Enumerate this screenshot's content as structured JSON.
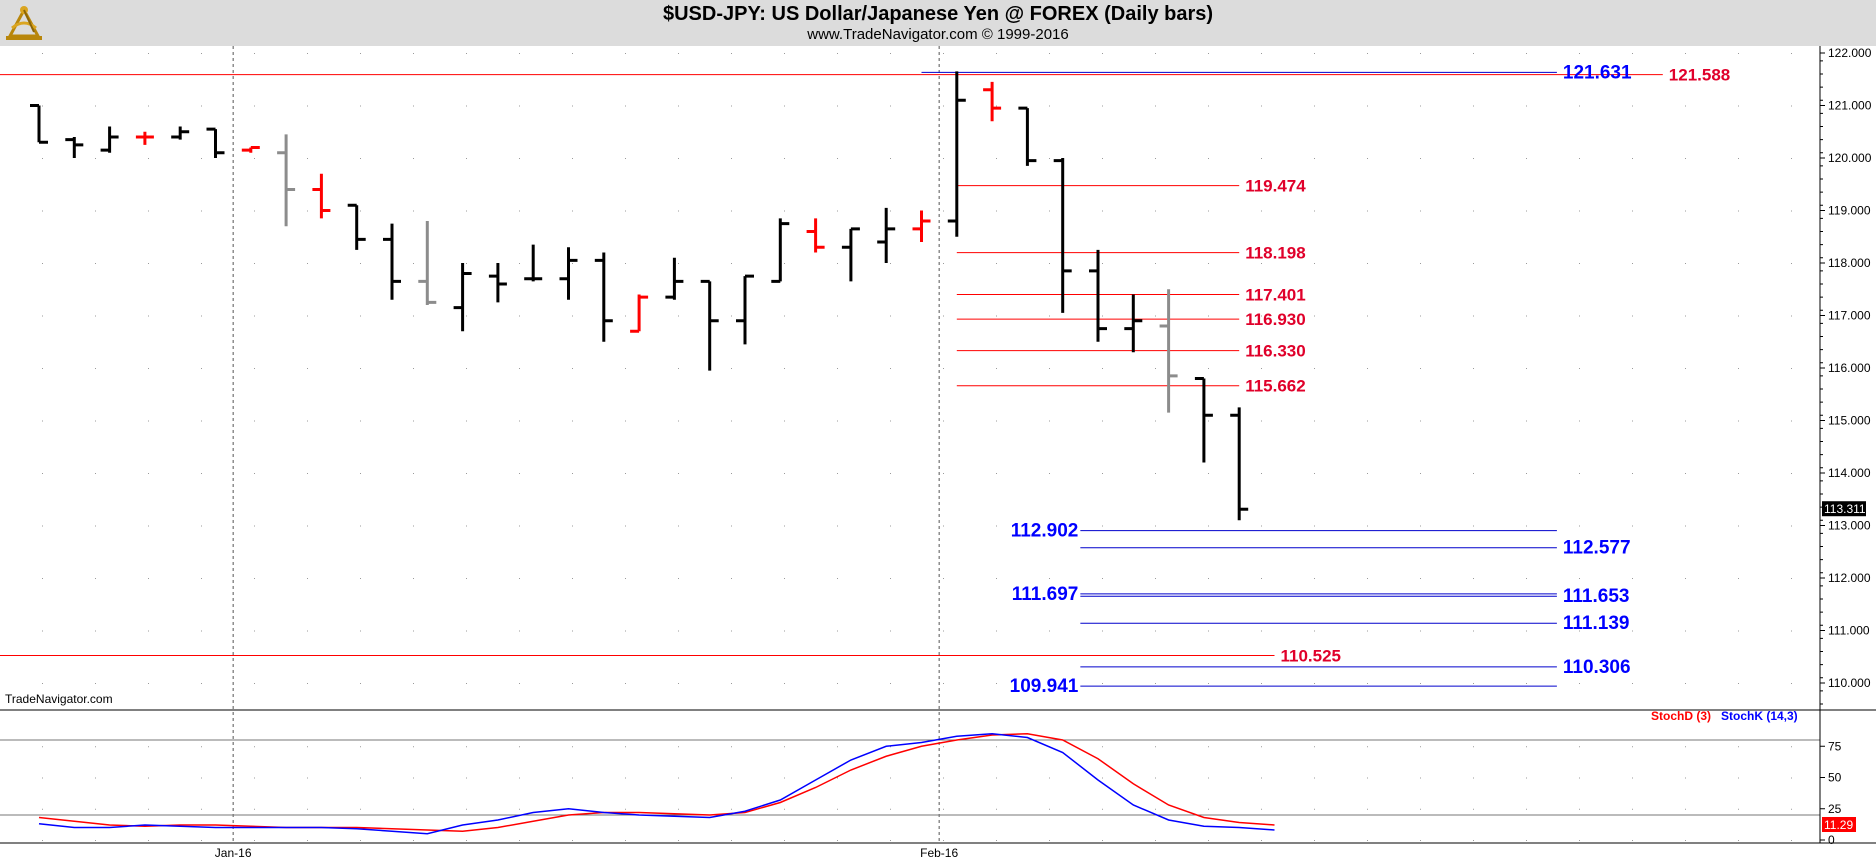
{
  "header": {
    "title": "$USD-JPY:  US Dollar/Japanese Yen @ FOREX  (Daily bars)",
    "subtitle": "www.TradeNavigator.com © 1999-2016"
  },
  "watermark": "TradeNavigator.com",
  "colors": {
    "bar_black": "#000000",
    "bar_red": "#ff0000",
    "bar_gray": "#8c8c8c",
    "level_red": "#ff0000",
    "level_red_text": "#e0002a",
    "level_blue": "#0000cc",
    "level_blue_text": "#0000ff",
    "grid": "#9a9a9a",
    "axis_line": "#000000",
    "price_tag_bg": "#000000",
    "stoch_tag_bg": "#ff0000"
  },
  "chart_data": [
    {
      "type": "bar",
      "subtype": "ohlc",
      "symbol": "$USD-JPY",
      "ylim": [
        109.6,
        122.0
      ],
      "yticks": [
        "122.000",
        "121.000",
        "120.000",
        "119.000",
        "118.000",
        "117.000",
        "116.000",
        "115.000",
        "114.000",
        "113.000",
        "112.000",
        "111.000",
        "110.000"
      ],
      "xtick_labels": [
        {
          "label": "Jan-16",
          "bar_index": 6
        },
        {
          "label": "Feb-16",
          "bar_index": 26
        }
      ],
      "last_price_label": "113.311",
      "bars": [
        {
          "o": 121.0,
          "h": 121.0,
          "l": 120.3,
          "c": 120.3,
          "color": "black"
        },
        {
          "o": 120.35,
          "h": 120.4,
          "l": 120.0,
          "c": 120.25,
          "color": "black"
        },
        {
          "o": 120.15,
          "h": 120.6,
          "l": 120.1,
          "c": 120.4,
          "color": "black"
        },
        {
          "o": 120.4,
          "h": 120.5,
          "l": 120.25,
          "c": 120.4,
          "color": "red"
        },
        {
          "o": 120.4,
          "h": 120.6,
          "l": 120.35,
          "c": 120.5,
          "color": "black"
        },
        {
          "o": 120.55,
          "h": 120.55,
          "l": 120.0,
          "c": 120.1,
          "color": "black"
        },
        {
          "o": 120.15,
          "h": 120.2,
          "l": 120.1,
          "c": 120.2,
          "color": "red"
        },
        {
          "o": 120.1,
          "h": 120.45,
          "l": 118.7,
          "c": 119.4,
          "color": "gray"
        },
        {
          "o": 119.4,
          "h": 119.7,
          "l": 118.85,
          "c": 119.0,
          "color": "red"
        },
        {
          "o": 119.1,
          "h": 119.1,
          "l": 118.25,
          "c": 118.45,
          "color": "black"
        },
        {
          "o": 118.45,
          "h": 118.75,
          "l": 117.3,
          "c": 117.65,
          "color": "black"
        },
        {
          "o": 117.65,
          "h": 118.8,
          "l": 117.2,
          "c": 117.25,
          "color": "gray"
        },
        {
          "o": 117.15,
          "h": 118.0,
          "l": 116.7,
          "c": 117.8,
          "color": "black"
        },
        {
          "o": 117.75,
          "h": 118.0,
          "l": 117.25,
          "c": 117.6,
          "color": "black"
        },
        {
          "o": 117.7,
          "h": 118.35,
          "l": 117.65,
          "c": 117.7,
          "color": "black"
        },
        {
          "o": 117.7,
          "h": 118.3,
          "l": 117.3,
          "c": 118.05,
          "color": "black"
        },
        {
          "o": 118.05,
          "h": 118.2,
          "l": 116.5,
          "c": 116.9,
          "color": "black"
        },
        {
          "o": 116.7,
          "h": 117.4,
          "l": 116.7,
          "c": 117.35,
          "color": "red"
        },
        {
          "o": 117.35,
          "h": 118.1,
          "l": 117.3,
          "c": 117.65,
          "color": "black"
        },
        {
          "o": 117.65,
          "h": 117.65,
          "l": 115.95,
          "c": 116.9,
          "color": "black"
        },
        {
          "o": 116.9,
          "h": 117.75,
          "l": 116.45,
          "c": 117.75,
          "color": "black"
        },
        {
          "o": 117.65,
          "h": 118.85,
          "l": 117.65,
          "c": 118.75,
          "color": "black"
        },
        {
          "o": 118.6,
          "h": 118.85,
          "l": 118.2,
          "c": 118.3,
          "color": "red"
        },
        {
          "o": 118.3,
          "h": 118.65,
          "l": 117.65,
          "c": 118.65,
          "color": "black"
        },
        {
          "o": 118.4,
          "h": 119.05,
          "l": 118.0,
          "c": 118.65,
          "color": "black"
        },
        {
          "o": 118.65,
          "h": 119.0,
          "l": 118.4,
          "c": 118.8,
          "color": "red"
        },
        {
          "o": 118.8,
          "h": 121.65,
          "l": 118.5,
          "c": 121.1,
          "color": "black"
        },
        {
          "o": 121.3,
          "h": 121.45,
          "l": 120.7,
          "c": 120.95,
          "color": "red"
        },
        {
          "o": 120.95,
          "h": 120.95,
          "l": 119.85,
          "c": 119.95,
          "color": "black"
        },
        {
          "o": 119.95,
          "h": 120.0,
          "l": 117.05,
          "c": 117.85,
          "color": "black"
        },
        {
          "o": 117.85,
          "h": 118.25,
          "l": 116.5,
          "c": 116.75,
          "color": "black"
        },
        {
          "o": 116.75,
          "h": 117.4,
          "l": 116.3,
          "c": 116.9,
          "color": "black"
        },
        {
          "o": 116.8,
          "h": 117.5,
          "l": 115.15,
          "c": 115.85,
          "color": "gray"
        },
        {
          "o": 115.8,
          "h": 115.8,
          "l": 114.2,
          "c": 115.1,
          "color": "black"
        },
        {
          "o": 115.1,
          "h": 115.25,
          "l": 113.1,
          "c": 113.31,
          "color": "black"
        }
      ],
      "levels": [
        {
          "value": 121.588,
          "label": "121.588",
          "color": "red",
          "from_bar": -1,
          "to_bar": 46,
          "label_side": "right"
        },
        {
          "value": 121.631,
          "label": "121.631",
          "color": "blue",
          "from_bar": 25,
          "to_bar": 43,
          "label_side": "right"
        },
        {
          "value": 119.474,
          "label": "119.474",
          "color": "red",
          "from_bar": 26,
          "to_bar": 34,
          "label_side": "right"
        },
        {
          "value": 118.198,
          "label": "118.198",
          "color": "red",
          "from_bar": 26,
          "to_bar": 34,
          "label_side": "right"
        },
        {
          "value": 117.401,
          "label": "117.401",
          "color": "red",
          "from_bar": 26,
          "to_bar": 34,
          "label_side": "right"
        },
        {
          "value": 116.93,
          "label": "116.930",
          "color": "red",
          "from_bar": 26,
          "to_bar": 34,
          "label_side": "right"
        },
        {
          "value": 116.33,
          "label": "116.330",
          "color": "red",
          "from_bar": 26,
          "to_bar": 34,
          "label_side": "right"
        },
        {
          "value": 115.662,
          "label": "115.662",
          "color": "red",
          "from_bar": 26,
          "to_bar": 34,
          "label_side": "right"
        },
        {
          "value": 112.902,
          "label": "112.902",
          "color": "blue",
          "from_bar": 29.5,
          "to_bar": 43,
          "label_side": "left"
        },
        {
          "value": 112.577,
          "label": "112.577",
          "color": "blue",
          "from_bar": 29.5,
          "to_bar": 43,
          "label_side": "right"
        },
        {
          "value": 111.697,
          "label": "111.697",
          "color": "blue",
          "from_bar": 29.5,
          "to_bar": 43,
          "label_side": "left"
        },
        {
          "value": 111.653,
          "label": "111.653",
          "color": "blue",
          "from_bar": 29.5,
          "to_bar": 43,
          "label_side": "right"
        },
        {
          "value": 111.139,
          "label": "111.139",
          "color": "blue",
          "from_bar": 29.5,
          "to_bar": 43,
          "label_side": "right"
        },
        {
          "value": 110.525,
          "label": "110.525",
          "color": "red",
          "from_bar": -1,
          "to_bar": 35,
          "label_side": "right"
        },
        {
          "value": 110.306,
          "label": "110.306",
          "color": "blue",
          "from_bar": 29.5,
          "to_bar": 43,
          "label_side": "right"
        },
        {
          "value": 109.941,
          "label": "109.941",
          "color": "blue",
          "from_bar": 29.5,
          "to_bar": 43,
          "label_side": "left"
        }
      ]
    },
    {
      "type": "line",
      "panel": "stochastic",
      "ylim": [
        0,
        100
      ],
      "yticks": [
        "75",
        "50",
        "25",
        "0"
      ],
      "reference_lines": [
        80,
        20
      ],
      "last_value_label": "11.29",
      "series": [
        {
          "name": "StochD (3)",
          "color": "#ff0000",
          "values": [
            18,
            15,
            12,
            11,
            12,
            12,
            11,
            10,
            10,
            10,
            9,
            8,
            7,
            10,
            15,
            20,
            22,
            22,
            21,
            20,
            22,
            30,
            42,
            56,
            67,
            75,
            80,
            84,
            85,
            80,
            65,
            45,
            28,
            18,
            14,
            12
          ]
        },
        {
          "name": "StochK (14,3)",
          "color": "#0000ff",
          "values": [
            13,
            10,
            10,
            12,
            11,
            10,
            10,
            10,
            10,
            9,
            7,
            5,
            12,
            16,
            22,
            25,
            22,
            20,
            19,
            18,
            23,
            32,
            48,
            64,
            75,
            78,
            83,
            85,
            82,
            70,
            48,
            28,
            16,
            11,
            10,
            8
          ]
        }
      ]
    }
  ]
}
